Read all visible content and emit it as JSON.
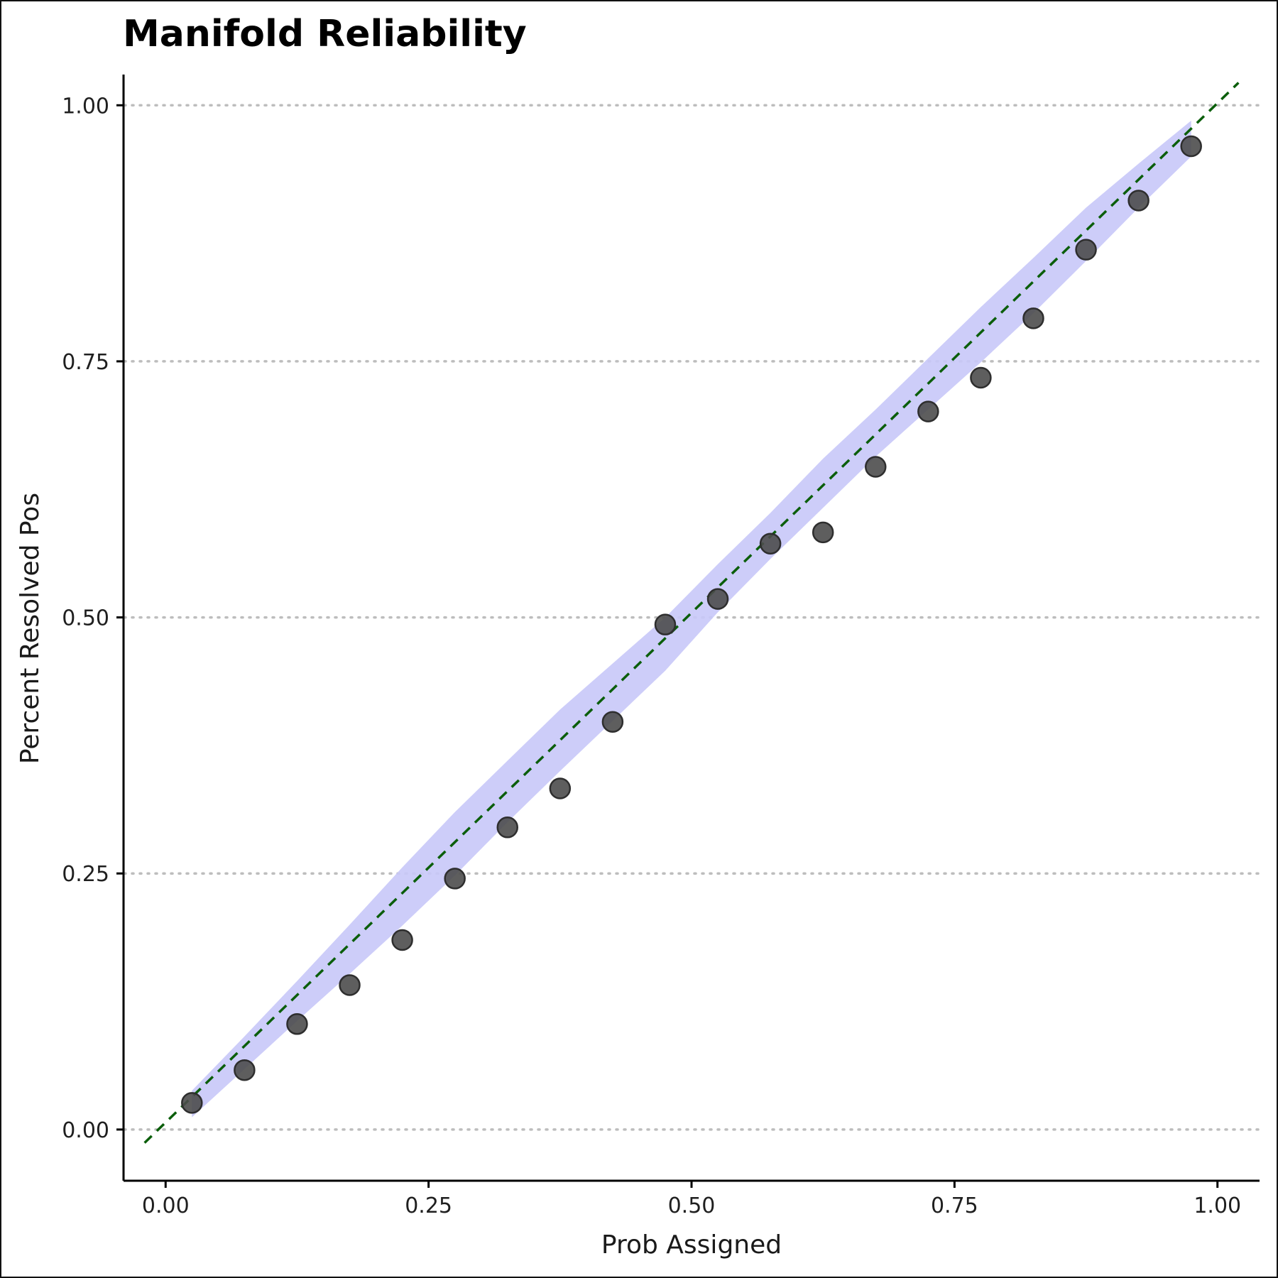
{
  "chart_data": {
    "type": "scatter",
    "title": "Manifold Reliability",
    "xlabel": "Prob Assigned",
    "ylabel": "Percent Resolved Pos",
    "xlim": [
      -0.04,
      1.04
    ],
    "ylim": [
      -0.05,
      1.03
    ],
    "x_ticks": [
      "0.00",
      "0.25",
      "0.50",
      "0.75",
      "1.00"
    ],
    "y_ticks": [
      "0.00",
      "0.25",
      "0.50",
      "0.75",
      "1.00"
    ],
    "grid": "horizontal dotted",
    "reference_line": {
      "from": [
        -0.02,
        -0.013
      ],
      "to": [
        1.02,
        1.022
      ],
      "style": "dashed",
      "color": "#0b5e0b"
    },
    "band": {
      "color": "#c8c8f8",
      "x": [
        0.025,
        0.075,
        0.125,
        0.175,
        0.225,
        0.275,
        0.325,
        0.375,
        0.425,
        0.475,
        0.525,
        0.575,
        0.625,
        0.675,
        0.725,
        0.775,
        0.825,
        0.875,
        0.925,
        0.975
      ],
      "upper": [
        0.038,
        0.091,
        0.145,
        0.2,
        0.256,
        0.31,
        0.36,
        0.41,
        0.455,
        0.5,
        0.552,
        0.602,
        0.655,
        0.703,
        0.753,
        0.803,
        0.851,
        0.9,
        0.943,
        0.985
      ],
      "lower": [
        0.012,
        0.059,
        0.106,
        0.152,
        0.199,
        0.248,
        0.3,
        0.35,
        0.399,
        0.448,
        0.505,
        0.557,
        0.607,
        0.657,
        0.703,
        0.749,
        0.797,
        0.848,
        0.9,
        0.95
      ]
    },
    "series": [
      {
        "color": "#4d4d4d",
        "x": [
          0.025,
          0.075,
          0.125,
          0.175,
          0.225,
          0.275,
          0.325,
          0.375,
          0.425,
          0.475,
          0.525,
          0.575,
          0.625,
          0.675,
          0.725,
          0.775,
          0.825,
          0.875,
          0.925,
          0.975
        ],
        "y": [
          0.026,
          0.058,
          0.103,
          0.141,
          0.185,
          0.245,
          0.295,
          0.333,
          0.398,
          0.493,
          0.518,
          0.572,
          0.583,
          0.647,
          0.701,
          0.734,
          0.792,
          0.859,
          0.907,
          0.96
        ]
      }
    ]
  }
}
